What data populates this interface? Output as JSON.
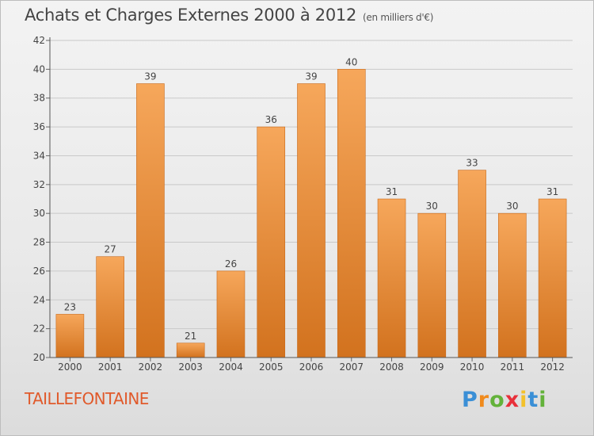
{
  "header": {
    "title": "Achats et Charges Externes 2000 à 2012",
    "unit": "(en milliers d'€)"
  },
  "location": "TAILLEFONTAINE",
  "logo": {
    "text": "Proxiti",
    "letter_colors": [
      "#3a8fd6",
      "#f08a1c",
      "#63b23a",
      "#e8303a",
      "#f3c12b",
      "#3a8fd6",
      "#63b23a"
    ]
  },
  "colors": {
    "bar_top": "#f6a75b",
    "bar_bottom": "#d2721e",
    "bar_edge": "#c8691a",
    "grid": "#c9c9c9"
  },
  "chart_data": {
    "type": "bar",
    "title": "Achats et Charges Externes 2000 à 2012",
    "subtitle": "(en milliers d'€)",
    "xlabel": "",
    "ylabel": "",
    "categories": [
      "2000",
      "2001",
      "2002",
      "2003",
      "2004",
      "2005",
      "2006",
      "2007",
      "2008",
      "2009",
      "2010",
      "2011",
      "2012"
    ],
    "values": [
      23,
      27,
      39,
      21,
      26,
      36,
      39,
      40,
      31,
      30,
      33,
      30,
      31
    ],
    "ylim": [
      20,
      42
    ],
    "yticks": [
      20,
      22,
      24,
      26,
      28,
      30,
      32,
      34,
      36,
      38,
      40,
      42
    ],
    "grid": "horizontal",
    "legend": "none"
  }
}
